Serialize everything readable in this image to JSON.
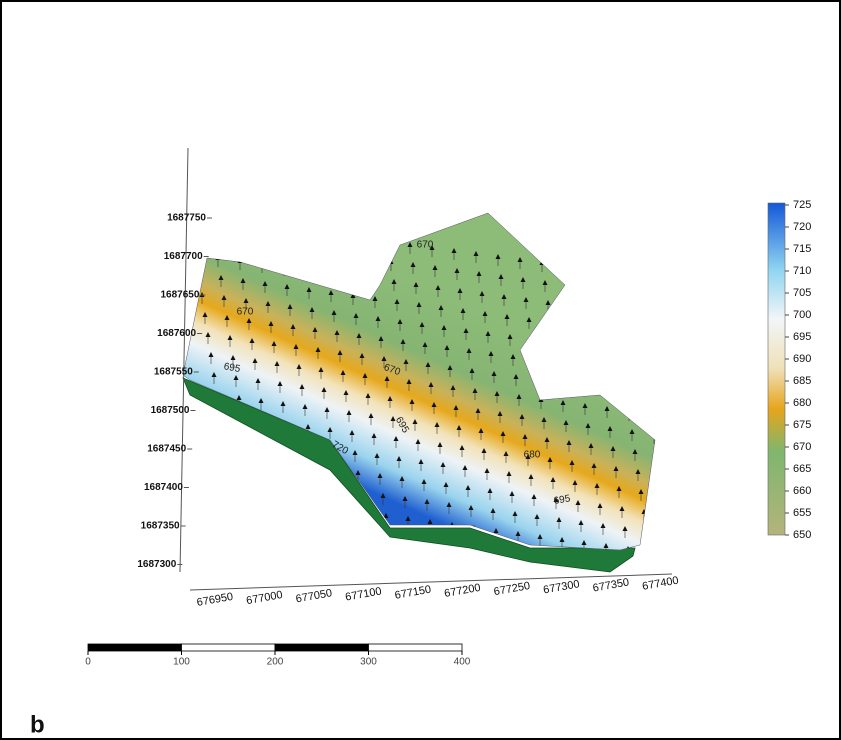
{
  "y_axis_labels": [
    "1687750",
    "1687700",
    "1687650",
    "1687600",
    "1687550",
    "1687500",
    "1687450",
    "1687400",
    "1687350",
    "1687300"
  ],
  "x_axis_labels": [
    "676950",
    "677000",
    "677050",
    "677100",
    "677150",
    "677200",
    "677250",
    "677300",
    "677350",
    "677400"
  ],
  "colorbar": {
    "ticks": [
      "725",
      "720",
      "715",
      "710",
      "705",
      "700",
      "695",
      "690",
      "685",
      "680",
      "675",
      "670",
      "665",
      "660",
      "655",
      "650"
    ]
  },
  "contour_labels": [
    "670",
    "670",
    "695",
    "670",
    "720",
    "695",
    "680",
    "695"
  ],
  "scale_bar": {
    "ticks": [
      "0",
      "100",
      "200",
      "300",
      "400"
    ]
  },
  "panel_label": "b"
}
